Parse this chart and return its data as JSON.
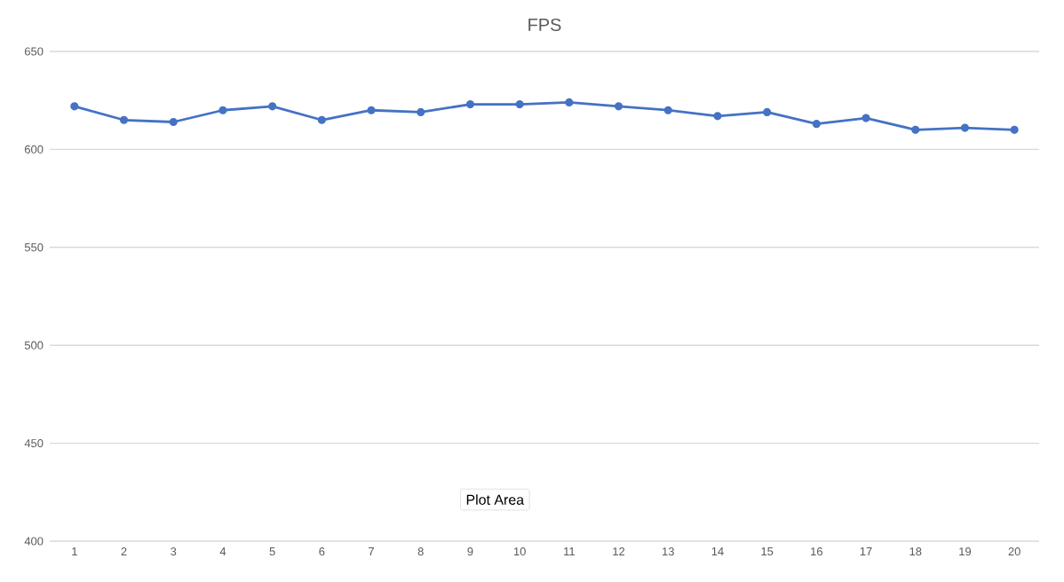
{
  "chart_data": {
    "type": "line",
    "title": "FPS",
    "categories": [
      "1",
      "2",
      "3",
      "4",
      "5",
      "6",
      "7",
      "8",
      "9",
      "10",
      "11",
      "12",
      "13",
      "14",
      "15",
      "16",
      "17",
      "18",
      "19",
      "20"
    ],
    "series": [
      {
        "color": "#4472c4",
        "values": [
          622,
          615,
          614,
          620,
          622,
          615,
          620,
          619,
          623,
          623,
          624,
          622,
          620,
          617,
          619,
          613,
          616,
          610,
          611,
          610
        ]
      }
    ],
    "ylim": [
      400,
      650
    ],
    "yticks": [
      400,
      450,
      500,
      550,
      600,
      650
    ],
    "grid": "y",
    "marker": "circle",
    "line_style": "solid",
    "annotations": [
      "Plot Area"
    ]
  }
}
